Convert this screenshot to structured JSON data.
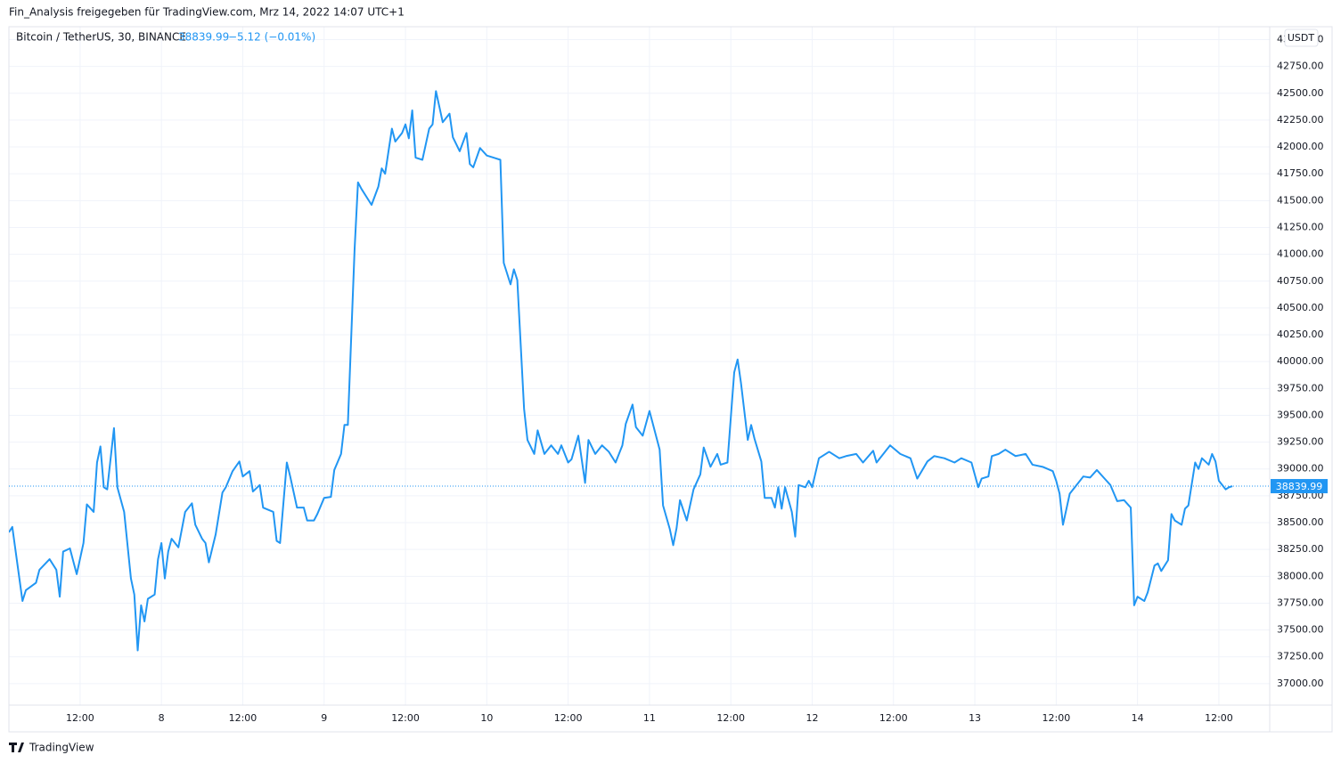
{
  "chart_data": {
    "type": "line",
    "header": "Fin_Analysis freigegeben für TradingView.com, Mrz 14, 2022 14:07 UTC+1",
    "title": "Bitcoin / TetherUS, 30, BINANCE",
    "change": "−5.12 (−0.01%)",
    "currency": "USDT",
    "brand": "TradingView",
    "color": "#2196f3",
    "grid": true,
    "x": [
      1.5,
      2,
      3.5,
      4,
      5.5,
      6,
      7.5,
      8.5,
      9,
      9.5,
      10.5,
      11.5,
      12.5,
      13,
      14,
      14.5,
      15,
      15.5,
      16,
      17,
      17.5,
      18.5,
      19.5,
      20,
      20.5,
      21,
      21.5,
      22,
      23,
      23.5,
      24,
      24.5,
      25,
      25.5,
      26.5,
      27.5,
      28.5,
      29,
      30,
      30.5,
      31,
      32,
      33,
      33.5,
      34.5,
      35.5,
      36,
      37,
      37.5,
      38.5,
      39,
      40.5,
      41,
      41.5,
      42.5,
      43,
      44,
      45,
      45.5,
      46.5,
      47,
      48,
      49,
      49.5,
      50.5,
      51,
      51.5,
      52.5,
      53,
      53.5,
      54.5,
      55,
      56,
      56.5,
      57,
      58,
      58.5,
      59.5,
      60,
      60.5,
      61,
      61.5,
      62.5,
      63.5,
      64,
      64.5,
      65.5,
      66.5,
      67,
      68,
      69,
      69.5,
      70,
      71,
      72,
      73,
      74,
      74.5,
      75.5,
      76,
      76.5,
      77.5,
      78,
      79,
      79.5,
      80.5,
      81.5,
      82.5,
      83,
      84,
      84.5,
      85.5,
      86.5,
      87,
      88,
      89,
      90,
      91,
      92,
      92.5,
      93.5,
      94,
      95,
      96,
      97.5,
      98,
      99,
      99.5,
      100,
      100.5,
      101.5,
      102.5,
      103.5,
      104,
      105,
      106,
      106.5,
      107.5,
      108.5,
      109,
      109.5,
      110.5,
      111,
      111.5,
      112.5,
      113,
      114,
      114.5,
      115,
      115.5,
      116,
      117,
      117.5,
      118,
      119,
      119.5,
      120,
      121,
      122.5,
      124,
      125,
      126.5,
      127.5,
      129,
      129.5,
      131,
      131.5,
      133,
      134.5,
      135.5,
      137,
      138,
      139.5,
      141,
      142,
      143.5,
      144.5,
      145,
      146,
      146.5,
      147.5,
      148.5,
      150,
      151.5,
      152.5,
      154,
      155.5,
      156,
      156.5,
      157,
      158,
      159,
      160,
      161,
      162,
      163,
      164,
      165,
      166,
      167,
      167.5,
      168,
      169,
      169.5,
      170.5,
      171,
      171.5,
      172.5,
      173,
      173.5,
      174.5,
      175,
      175.5,
      176.5,
      177,
      177.5,
      178.5,
      179,
      179.5,
      180,
      181,
      181.5,
      182
    ],
    "values": [
      38410,
      38460,
      37770,
      37870,
      37940,
      38060,
      38160,
      38060,
      37810,
      38230,
      38260,
      38020,
      38310,
      38670,
      38600,
      39060,
      39210,
      38830,
      38810,
      39380,
      38830,
      38600,
      37980,
      37830,
      37310,
      37730,
      37580,
      37790,
      37830,
      38160,
      38310,
      37980,
      38230,
      38350,
      38270,
      38600,
      38680,
      38480,
      38350,
      38310,
      38130,
      38390,
      38780,
      38830,
      38980,
      39070,
      38930,
      38980,
      38790,
      38850,
      38640,
      38600,
      38330,
      38310,
      39060,
      38930,
      38640,
      38640,
      38520,
      38520,
      38580,
      38730,
      38740,
      38990,
      39140,
      39410,
      39410,
      41050,
      41670,
      41610,
      41510,
      41460,
      41630,
      41800,
      41750,
      42170,
      42050,
      42130,
      42210,
      42080,
      42340,
      41900,
      41880,
      42170,
      42210,
      42520,
      42230,
      42310,
      42090,
      41960,
      42130,
      41840,
      41810,
      41990,
      41920,
      41900,
      41880,
      40920,
      40720,
      40860,
      40760,
      39560,
      39270,
      39140,
      39360,
      39140,
      39220,
      39140,
      39220,
      39060,
      39090,
      39310,
      38870,
      39270,
      39140,
      39220,
      39160,
      39060,
      39220,
      39420,
      39600,
      39390,
      39310,
      39540,
      39180,
      38660,
      38440,
      38290,
      38450,
      38710,
      38520,
      38810,
      38950,
      39200,
      39020,
      39140,
      39040,
      39060,
      39900,
      40020,
      39800,
      39270,
      39410,
      39280,
      39070,
      38730,
      38730,
      38640,
      38830,
      38630,
      38830,
      38600,
      38370,
      38850,
      38830,
      38890,
      38830,
      39100,
      39160,
      39100,
      39120,
      39140,
      39060,
      39170,
      39060,
      39180,
      39220,
      39140,
      39100,
      38910,
      39070,
      39120,
      39100,
      39060,
      39100,
      39060,
      38830,
      38910,
      38930,
      39120,
      39140,
      39180,
      39120,
      39140,
      39040,
      39020,
      38980,
      38890,
      38770,
      38480,
      38770,
      38850,
      38930,
      38920,
      38990,
      38920,
      38850,
      38700,
      38710,
      38640,
      37730,
      37810,
      37770,
      37850,
      38100,
      38120,
      38050,
      38150,
      38580,
      38520,
      38480,
      38630,
      38660,
      39060,
      39000,
      39100,
      39040,
      39140,
      39070,
      38890,
      38810,
      38830,
      38839.99
    ],
    "xlim": [
      1.5,
      187.5
    ],
    "xticks": [
      {
        "value": 12,
        "label": "12:00"
      },
      {
        "value": 24,
        "label": "8"
      },
      {
        "value": 36,
        "label": "12:00"
      },
      {
        "value": 48,
        "label": "9"
      },
      {
        "value": 60,
        "label": "12:00"
      },
      {
        "value": 72,
        "label": "10"
      },
      {
        "value": 84,
        "label": "12:00"
      },
      {
        "value": 96,
        "label": "11"
      },
      {
        "value": 108,
        "label": "12:00"
      },
      {
        "value": 120,
        "label": "12"
      },
      {
        "value": 132,
        "label": "12:00"
      },
      {
        "value": 144,
        "label": "13"
      },
      {
        "value": 156,
        "label": "12:00"
      },
      {
        "value": 168,
        "label": "14"
      },
      {
        "value": 180,
        "label": "12:00"
      }
    ],
    "ylim": [
      36800,
      43120
    ],
    "yticks": [
      {
        "value": 37000,
        "label": "37000.00"
      },
      {
        "value": 37250,
        "label": "37250.00"
      },
      {
        "value": 37500,
        "label": "37500.00"
      },
      {
        "value": 37750,
        "label": "37750.00"
      },
      {
        "value": 38000,
        "label": "38000.00"
      },
      {
        "value": 38250,
        "label": "38250.00"
      },
      {
        "value": 38500,
        "label": "38500.00"
      },
      {
        "value": 38750,
        "label": "38750.00"
      },
      {
        "value": 39000,
        "label": "39000.00"
      },
      {
        "value": 39250,
        "label": "39250.00"
      },
      {
        "value": 39500,
        "label": "39500.00"
      },
      {
        "value": 39750,
        "label": "39750.00"
      },
      {
        "value": 40000,
        "label": "40000.00"
      },
      {
        "value": 40250,
        "label": "40250.00"
      },
      {
        "value": 40500,
        "label": "40500.00"
      },
      {
        "value": 40750,
        "label": "40750.00"
      },
      {
        "value": 41000,
        "label": "41000.00"
      },
      {
        "value": 41250,
        "label": "41250.00"
      },
      {
        "value": 41500,
        "label": "41500.00"
      },
      {
        "value": 41750,
        "label": "41750.00"
      },
      {
        "value": 42000,
        "label": "42000.00"
      },
      {
        "value": 42250,
        "label": "42250.00"
      },
      {
        "value": 42500,
        "label": "42500.00"
      },
      {
        "value": 42750,
        "label": "42750.00"
      },
      {
        "value": 43000,
        "label": "43000.00"
      }
    ]
  }
}
